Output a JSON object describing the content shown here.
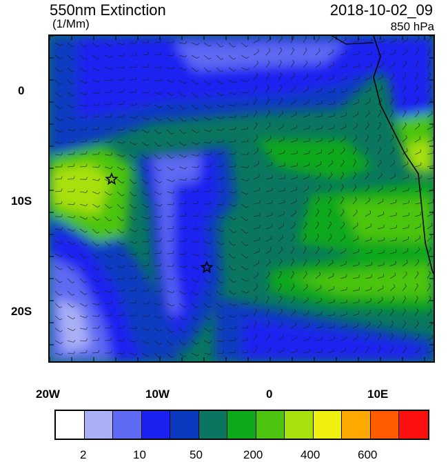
{
  "header": {
    "title": "550nm Extinction",
    "units": "(1/Mm)",
    "datetime": "2018-10-02_09",
    "level": "850 hPa"
  },
  "map": {
    "lat_labels": [
      "0",
      "10S",
      "20S"
    ],
    "lon_labels": [
      "20W",
      "10W",
      "0",
      "10E"
    ],
    "markers": [
      "star",
      "star"
    ]
  },
  "colorbar": {
    "colors": [
      "#ffffff",
      "#aab0f5",
      "#5f6bf2",
      "#1a20f0",
      "#0a3ac0",
      "#0a7660",
      "#0ea81a",
      "#4cc410",
      "#a8e010",
      "#f0f010",
      "#ffa800",
      "#ff5c00",
      "#ff1010"
    ],
    "labels": [
      "2",
      "10",
      "50",
      "200",
      "400",
      "600"
    ]
  }
}
